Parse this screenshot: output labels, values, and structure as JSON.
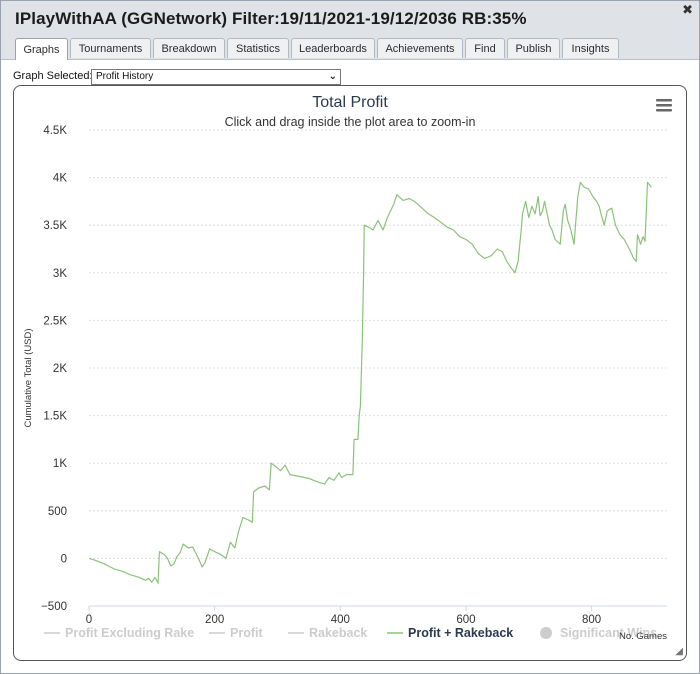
{
  "window": {
    "title": "IPlayWithAA (GGNetwork) Filter:19/11/2021-19/12/2036 RB:35%",
    "close_glyph": "✖"
  },
  "tabs": [
    {
      "label": "Graphs",
      "active": true
    },
    {
      "label": "Tournaments",
      "active": false
    },
    {
      "label": "Breakdown",
      "active": false
    },
    {
      "label": "Statistics",
      "active": false
    },
    {
      "label": "Leaderboards",
      "active": false
    },
    {
      "label": "Achievements",
      "active": false
    },
    {
      "label": "Find",
      "active": false
    },
    {
      "label": "Publish",
      "active": false
    },
    {
      "label": "Insights",
      "active": false
    }
  ],
  "graph_selector": {
    "label": "Graph Selected:",
    "value": "Profit History"
  },
  "chart_data": {
    "type": "line",
    "title": "Total Profit",
    "subtitle": "Click and drag inside the plot area to zoom-in",
    "xlabel": "No. Games",
    "ylabel": "Cumulative Total (USD)",
    "xlim": [
      0,
      920
    ],
    "ylim": [
      -500,
      4500
    ],
    "x_ticks": [
      0,
      200,
      400,
      600,
      800
    ],
    "x_tick_labels": [
      "0",
      "200",
      "400",
      "600",
      "800"
    ],
    "y_ticks": [
      -500,
      0,
      500,
      1000,
      1500,
      2000,
      2500,
      3000,
      3500,
      4000,
      4500
    ],
    "y_tick_labels": [
      "−500",
      "0",
      "500",
      "1K",
      "1.5K",
      "2K",
      "2.5K",
      "3K",
      "3.5K",
      "4K",
      "4.5K"
    ],
    "grid": "horizontal dotted",
    "legend_position": "bottom",
    "legend": [
      {
        "name": "Profit Excluding Rake",
        "visible": false,
        "marker": "line"
      },
      {
        "name": "Profit",
        "visible": false,
        "marker": "line"
      },
      {
        "name": "Rakeback",
        "visible": false,
        "marker": "line"
      },
      {
        "name": "Profit + Rakeback",
        "visible": true,
        "marker": "line"
      },
      {
        "name": "Significant Wins",
        "visible": false,
        "marker": "circle"
      }
    ],
    "series": [
      {
        "name": "Profit + Rakeback",
        "color": "#8bc27a",
        "points": [
          [
            0,
            0
          ],
          [
            10,
            -20
          ],
          [
            25,
            -60
          ],
          [
            40,
            -110
          ],
          [
            55,
            -140
          ],
          [
            65,
            -170
          ],
          [
            80,
            -200
          ],
          [
            90,
            -230
          ],
          [
            95,
            -210
          ],
          [
            100,
            -250
          ],
          [
            105,
            -200
          ],
          [
            110,
            -260
          ],
          [
            112,
            70
          ],
          [
            120,
            40
          ],
          [
            125,
            0
          ],
          [
            130,
            -80
          ],
          [
            135,
            -60
          ],
          [
            140,
            20
          ],
          [
            145,
            60
          ],
          [
            150,
            150
          ],
          [
            158,
            110
          ],
          [
            165,
            120
          ],
          [
            175,
            -10
          ],
          [
            180,
            -90
          ],
          [
            185,
            -40
          ],
          [
            192,
            100
          ],
          [
            200,
            70
          ],
          [
            210,
            40
          ],
          [
            218,
            0
          ],
          [
            225,
            170
          ],
          [
            232,
            110
          ],
          [
            238,
            280
          ],
          [
            245,
            430
          ],
          [
            252,
            410
          ],
          [
            260,
            380
          ],
          [
            262,
            700
          ],
          [
            270,
            740
          ],
          [
            280,
            760
          ],
          [
            287,
            720
          ],
          [
            290,
            1000
          ],
          [
            298,
            960
          ],
          [
            305,
            920
          ],
          [
            312,
            980
          ],
          [
            320,
            880
          ],
          [
            335,
            860
          ],
          [
            350,
            840
          ],
          [
            365,
            800
          ],
          [
            375,
            780
          ],
          [
            382,
            850
          ],
          [
            390,
            820
          ],
          [
            398,
            900
          ],
          [
            402,
            850
          ],
          [
            410,
            880
          ],
          [
            420,
            880
          ],
          [
            422,
            1250
          ],
          [
            428,
            1250
          ],
          [
            430,
            1500
          ],
          [
            432,
            1600
          ],
          [
            435,
            2300
          ],
          [
            437,
            3000
          ],
          [
            438,
            3500
          ],
          [
            445,
            3480
          ],
          [
            452,
            3450
          ],
          [
            460,
            3550
          ],
          [
            468,
            3450
          ],
          [
            475,
            3580
          ],
          [
            480,
            3650
          ],
          [
            485,
            3720
          ],
          [
            490,
            3820
          ],
          [
            500,
            3760
          ],
          [
            510,
            3780
          ],
          [
            520,
            3740
          ],
          [
            530,
            3680
          ],
          [
            540,
            3620
          ],
          [
            550,
            3580
          ],
          [
            560,
            3530
          ],
          [
            570,
            3480
          ],
          [
            580,
            3450
          ],
          [
            590,
            3380
          ],
          [
            600,
            3350
          ],
          [
            610,
            3300
          ],
          [
            620,
            3200
          ],
          [
            630,
            3150
          ],
          [
            640,
            3180
          ],
          [
            650,
            3250
          ],
          [
            658,
            3220
          ],
          [
            665,
            3120
          ],
          [
            672,
            3050
          ],
          [
            678,
            3000
          ],
          [
            683,
            3120
          ],
          [
            688,
            3450
          ],
          [
            690,
            3620
          ],
          [
            695,
            3750
          ],
          [
            700,
            3580
          ],
          [
            705,
            3700
          ],
          [
            710,
            3620
          ],
          [
            715,
            3800
          ],
          [
            718,
            3600
          ],
          [
            722,
            3650
          ],
          [
            725,
            3750
          ],
          [
            730,
            3600
          ],
          [
            733,
            3500
          ],
          [
            737,
            3450
          ],
          [
            742,
            3350
          ],
          [
            750,
            3300
          ],
          [
            755,
            3650
          ],
          [
            758,
            3720
          ],
          [
            762,
            3550
          ],
          [
            767,
            3450
          ],
          [
            772,
            3300
          ],
          [
            778,
            3800
          ],
          [
            782,
            3950
          ],
          [
            788,
            3900
          ],
          [
            795,
            3880
          ],
          [
            802,
            3800
          ],
          [
            808,
            3750
          ],
          [
            812,
            3700
          ],
          [
            815,
            3620
          ],
          [
            820,
            3500
          ],
          [
            825,
            3650
          ],
          [
            832,
            3680
          ],
          [
            838,
            3500
          ],
          [
            845,
            3400
          ],
          [
            852,
            3350
          ],
          [
            860,
            3250
          ],
          [
            867,
            3150
          ],
          [
            871,
            3120
          ],
          [
            873,
            3400
          ],
          [
            878,
            3300
          ],
          [
            882,
            3380
          ],
          [
            885,
            3330
          ],
          [
            889,
            3950
          ],
          [
            895,
            3900
          ]
        ]
      }
    ]
  }
}
